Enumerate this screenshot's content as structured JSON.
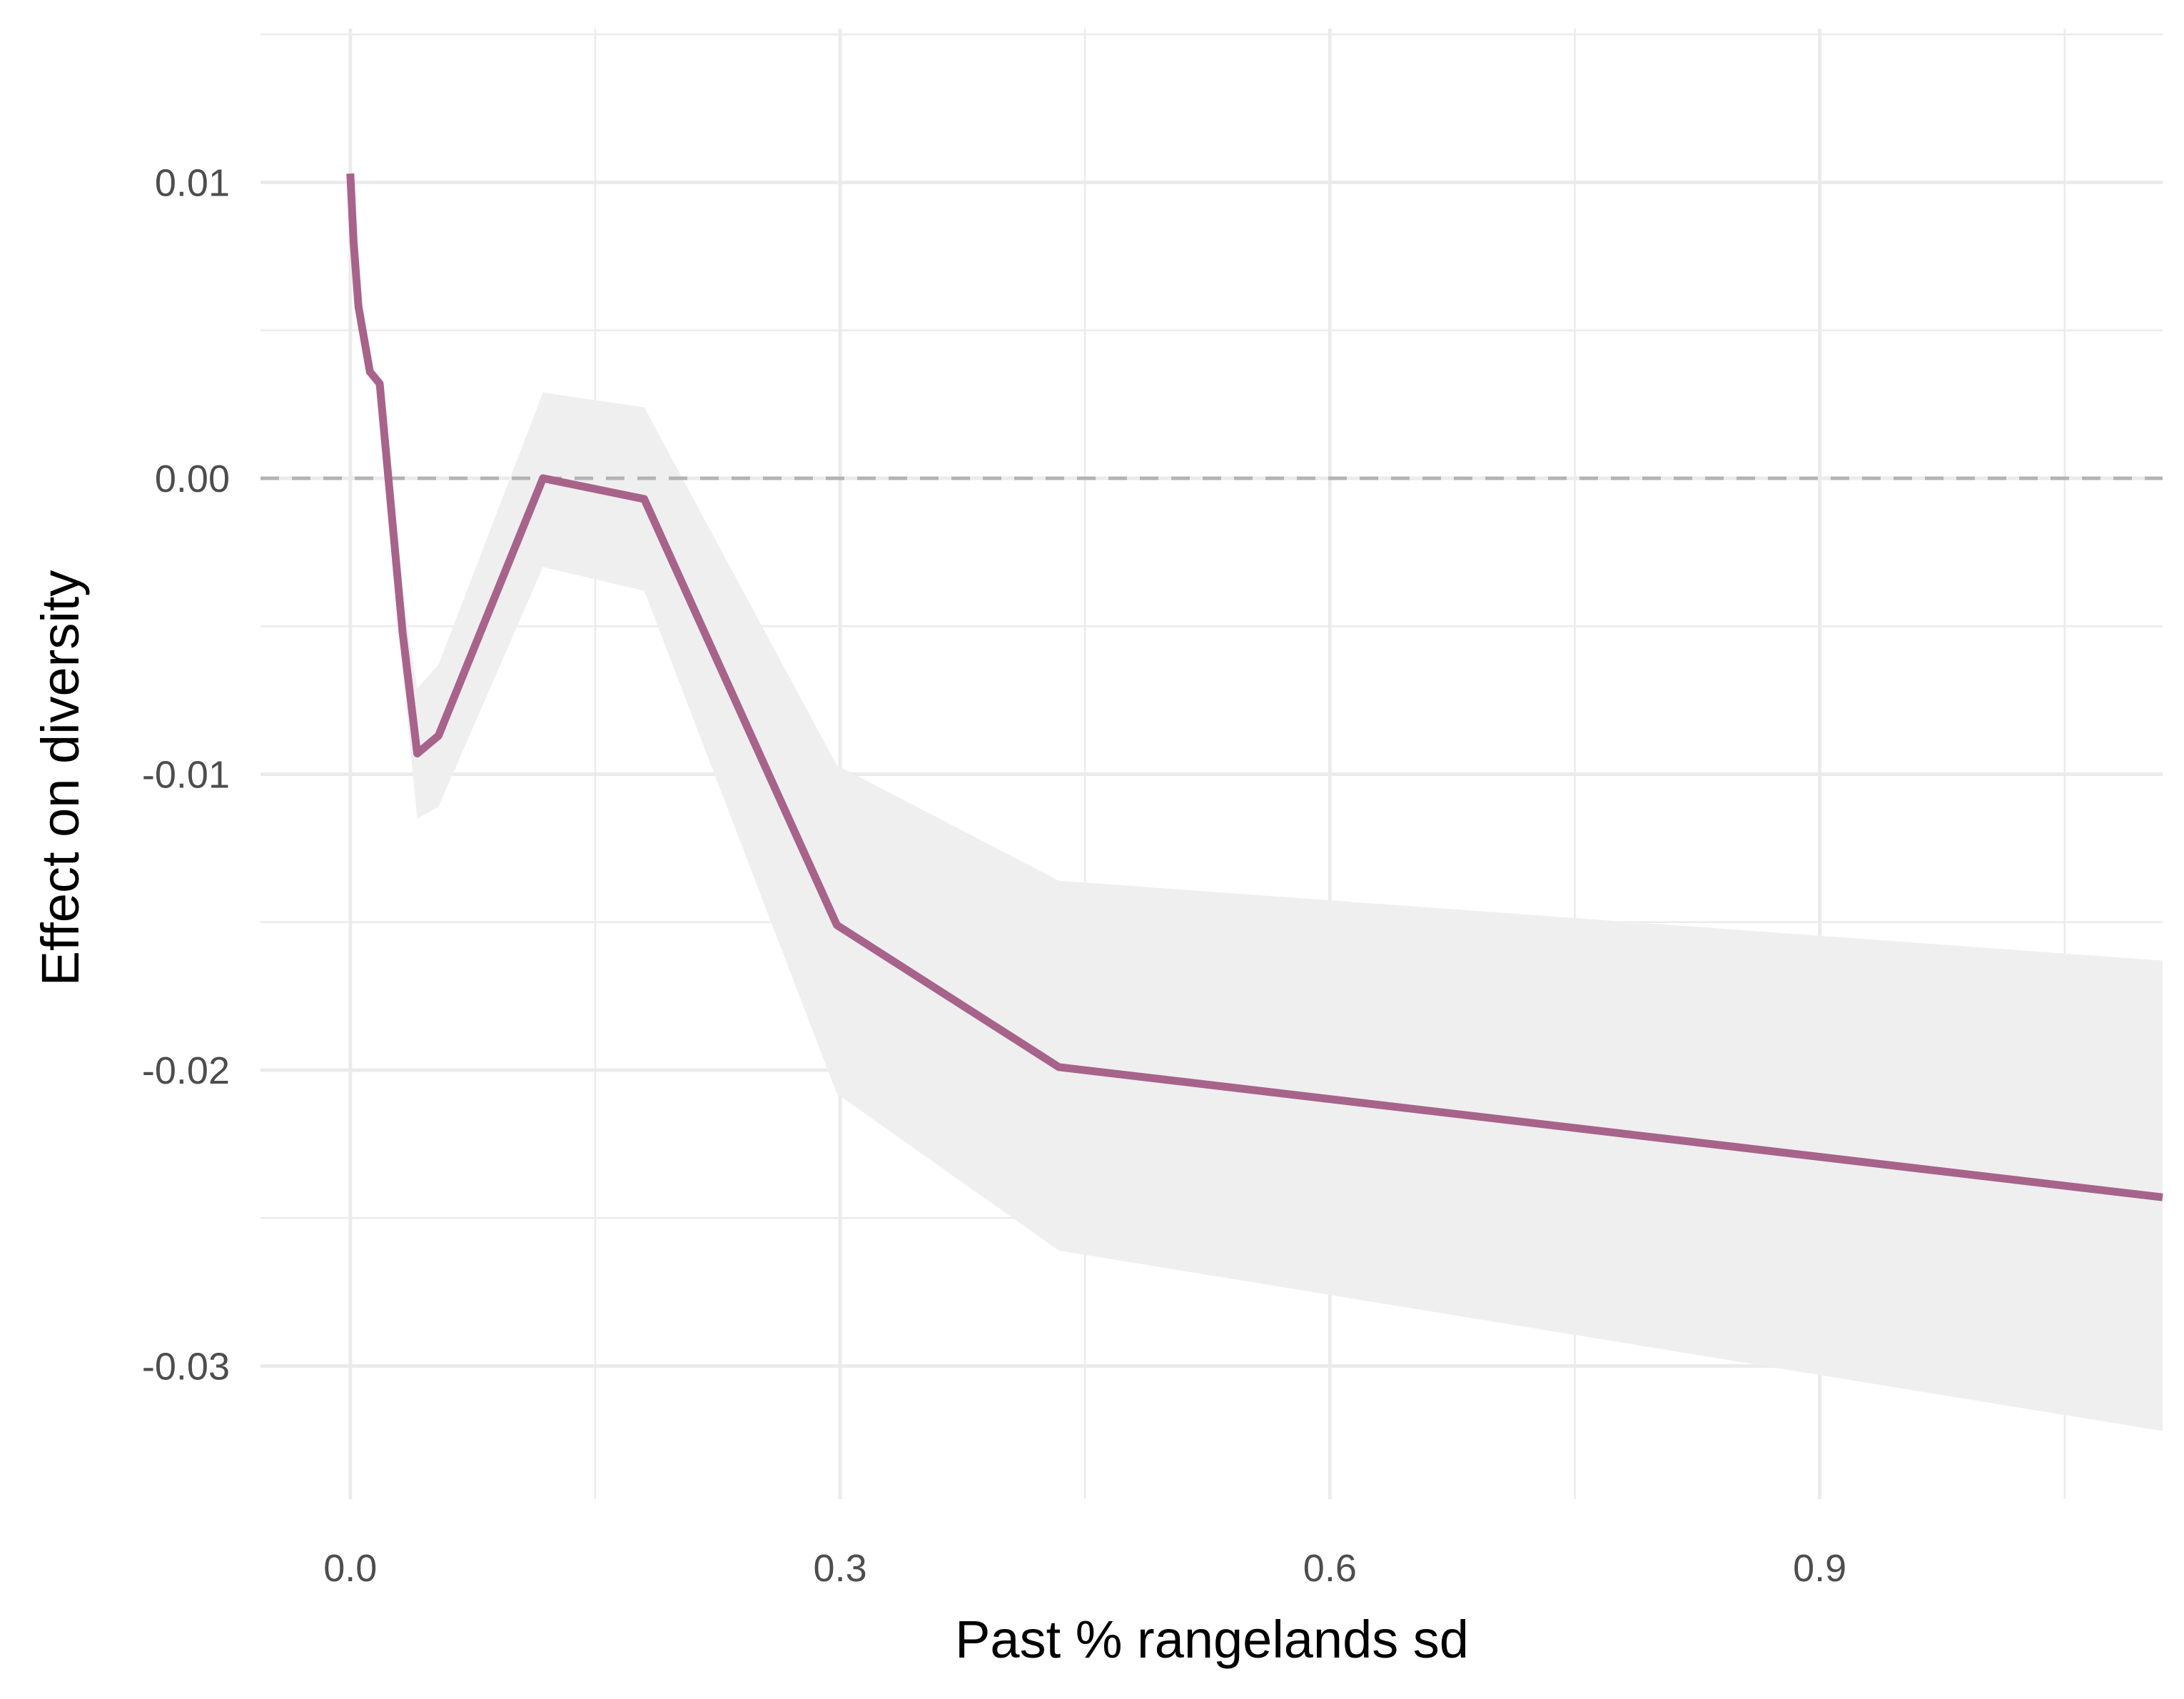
{
  "chart_data": {
    "type": "line",
    "title": "",
    "xlabel": "Past % rangelands sd",
    "ylabel": "Effect on diversity",
    "xlim": [
      -0.055,
      1.11
    ],
    "ylim": [
      -0.0345,
      0.0152
    ],
    "x_ticks": [
      0.0,
      0.3,
      0.6,
      0.9
    ],
    "x_tick_labels": [
      "0.0",
      "0.3",
      "0.6",
      "0.9"
    ],
    "x_minor_ticks": [
      0.15,
      0.45,
      0.75,
      1.05
    ],
    "y_ticks": [
      0.01,
      0.0,
      -0.01,
      -0.02,
      -0.03
    ],
    "y_tick_labels": [
      "0.01",
      "0.00",
      "-0.01",
      "-0.02",
      "-0.03"
    ],
    "y_minor_ticks": [
      0.015,
      0.005,
      -0.005,
      -0.015,
      -0.025
    ],
    "grid": true,
    "legend": "none",
    "reference_line": {
      "y": 0.0,
      "style": "dashed",
      "color": "#b3b3b3"
    },
    "series": [
      {
        "color": "#a8638a",
        "x": [
          0.0,
          0.002,
          0.005,
          0.012,
          0.018,
          0.032,
          0.041,
          0.054,
          0.118,
          0.18,
          0.298,
          0.434,
          1.11
        ],
        "y": [
          0.0103,
          0.008,
          0.0058,
          0.0036,
          0.0032,
          -0.0052,
          -0.0093,
          -0.0087,
          0.0,
          -0.0007,
          -0.0151,
          -0.0199,
          -0.0243
        ],
        "ribbon_color": "#efefef",
        "lower": [
          0.0103,
          0.008,
          0.0058,
          0.0036,
          0.0032,
          -0.0065,
          -0.0115,
          -0.0111,
          -0.003,
          -0.0038,
          -0.0208,
          -0.0261,
          -0.0322
        ],
        "upper": [
          0.0103,
          0.008,
          0.0058,
          0.0036,
          0.0032,
          -0.004,
          -0.0071,
          -0.0063,
          0.0029,
          0.0024,
          -0.0097,
          -0.0136,
          -0.0163
        ]
      }
    ]
  }
}
